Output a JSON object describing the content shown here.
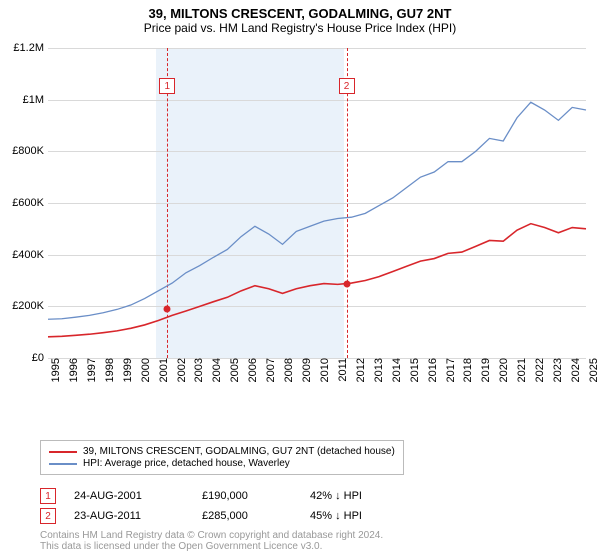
{
  "title": "39, MILTONS CRESCENT, GODALMING, GU7 2NT",
  "subtitle": "Price paid vs. HM Land Registry's House Price Index (HPI)",
  "title_fontsize": 13,
  "subtitle_fontsize": 12,
  "chart": {
    "type": "line",
    "background_color": "#ffffff",
    "shade_color": "#eaf2fa",
    "grid_color": "#d9d9d9",
    "axis_color": "#d9d9d9",
    "ylabel_fontsize": 11,
    "xlabel_fontsize": 11,
    "xlim": [
      1995,
      2025
    ],
    "ylim": [
      0,
      1200000
    ],
    "ytick_step": 200000,
    "ytick_labels": [
      "£0",
      "£200K",
      "£400K",
      "£600K",
      "£800K",
      "£1M",
      "£1.2M"
    ],
    "xtick_step": 1,
    "xticks": [
      1995,
      1996,
      1997,
      1998,
      1999,
      2000,
      2001,
      2002,
      2003,
      2004,
      2005,
      2006,
      2007,
      2008,
      2009,
      2010,
      2011,
      2012,
      2013,
      2014,
      2015,
      2016,
      2017,
      2018,
      2019,
      2020,
      2021,
      2022,
      2023,
      2024,
      2025
    ],
    "shade_x": [
      2001.0,
      2011.5
    ],
    "vlines": [
      {
        "x": 2001.65,
        "label": "1",
        "color": "#d8262b"
      },
      {
        "x": 2011.65,
        "label": "2",
        "color": "#d8262b"
      }
    ],
    "series": [
      {
        "name": "HPI: Average price, detached house, Waverley",
        "color": "#6a8ec7",
        "line_width": 1.3,
        "y": [
          150,
          152,
          158,
          165,
          175,
          188,
          205,
          230,
          260,
          290,
          330,
          358,
          390,
          420,
          470,
          510,
          480,
          440,
          490,
          510,
          530,
          540,
          545,
          560,
          590,
          620,
          660,
          700,
          720,
          760,
          760,
          800,
          850,
          840,
          930,
          990,
          960,
          920,
          970,
          960
        ]
      },
      {
        "name": "39, MILTONS CRESCENT, GODALMING, GU7 2NT (detached house)",
        "color": "#d8262b",
        "line_width": 1.6,
        "y": [
          82,
          84,
          88,
          92,
          98,
          105,
          115,
          128,
          145,
          165,
          182,
          200,
          218,
          235,
          260,
          280,
          268,
          250,
          268,
          280,
          288,
          285,
          290,
          300,
          315,
          335,
          355,
          375,
          385,
          405,
          410,
          432,
          455,
          452,
          495,
          520,
          505,
          485,
          505,
          500
        ]
      }
    ],
    "sale_dots": [
      {
        "x": 2001.65,
        "value": 190,
        "color": "#d8262b"
      },
      {
        "x": 2011.65,
        "value": 285,
        "color": "#d8262b"
      }
    ]
  },
  "legend": {
    "border_color": "#bbbbbb",
    "fontsize": 10,
    "items": [
      {
        "color": "#d8262b",
        "label": "39, MILTONS CRESCENT, GODALMING, GU7 2NT (detached house)"
      },
      {
        "color": "#6a8ec7",
        "label": "HPI: Average price, detached house, Waverley"
      }
    ]
  },
  "sales": {
    "fontsize": 11,
    "marker_color": "#d8262b",
    "rows": [
      {
        "num": "1",
        "date": "24-AUG-2001",
        "price": "£190,000",
        "pct": "42% ↓ HPI"
      },
      {
        "num": "2",
        "date": "23-AUG-2011",
        "price": "£285,000",
        "pct": "45% ↓ HPI"
      }
    ]
  },
  "footer": {
    "line1": "Contains HM Land Registry data © Crown copyright and database right 2024.",
    "line2": "This data is licensed under the Open Government Licence v3.0.",
    "fontsize": 10,
    "color": "#999999"
  }
}
